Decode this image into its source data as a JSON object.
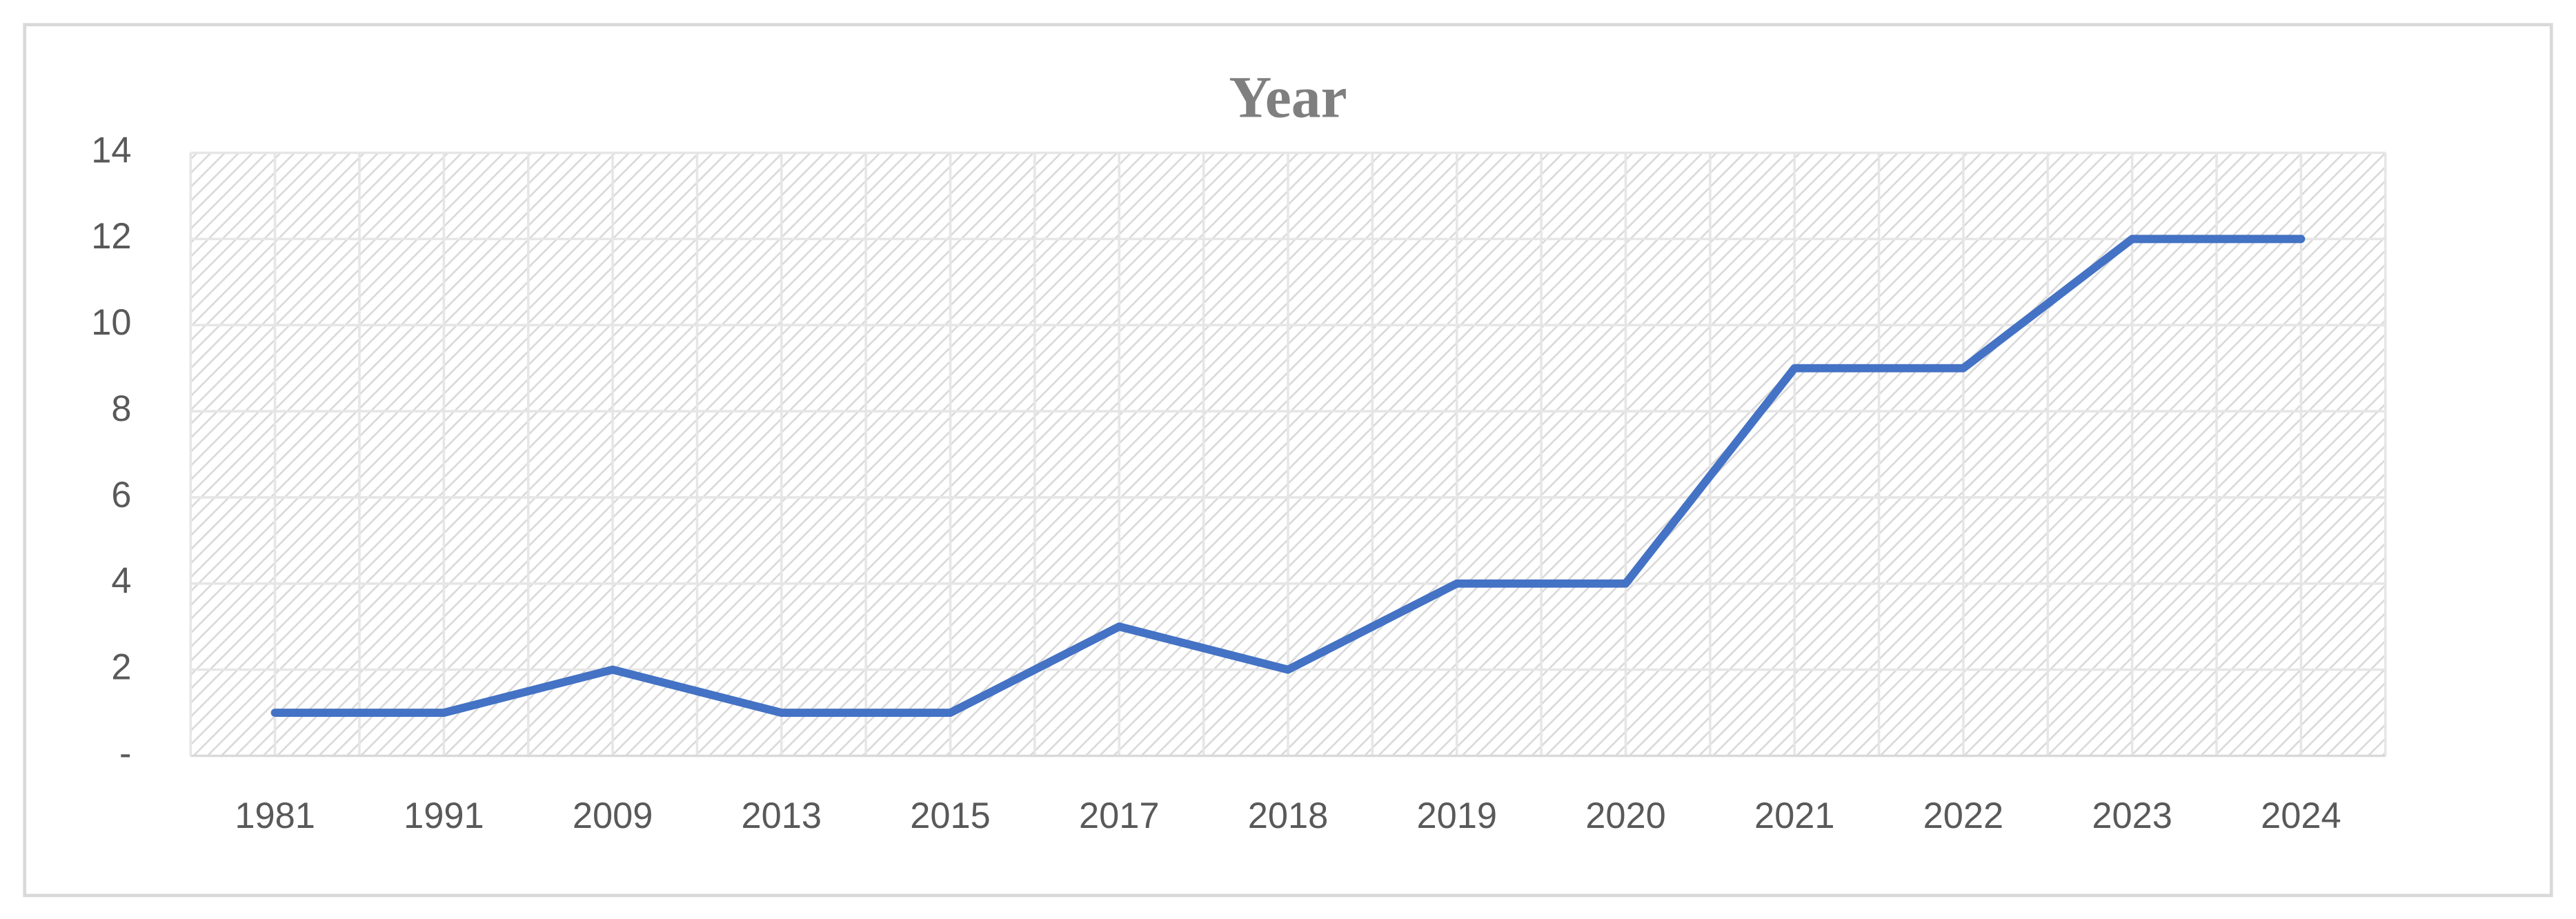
{
  "chart_data": {
    "type": "line",
    "title": "Year",
    "categories": [
      "1981",
      "1991",
      "2009",
      "2013",
      "2015",
      "2017",
      "2018",
      "2019",
      "2020",
      "2021",
      "2022",
      "2023",
      "2024"
    ],
    "values": [
      1,
      1,
      2,
      1,
      1,
      3,
      2,
      4,
      4,
      9,
      9,
      12,
      12
    ],
    "color": "#4472c4",
    "ylim": [
      0,
      14
    ],
    "yticks": [
      {
        "value": 0,
        "label": "-"
      },
      2,
      4,
      6,
      8,
      10,
      12,
      14
    ],
    "grid": true
  }
}
